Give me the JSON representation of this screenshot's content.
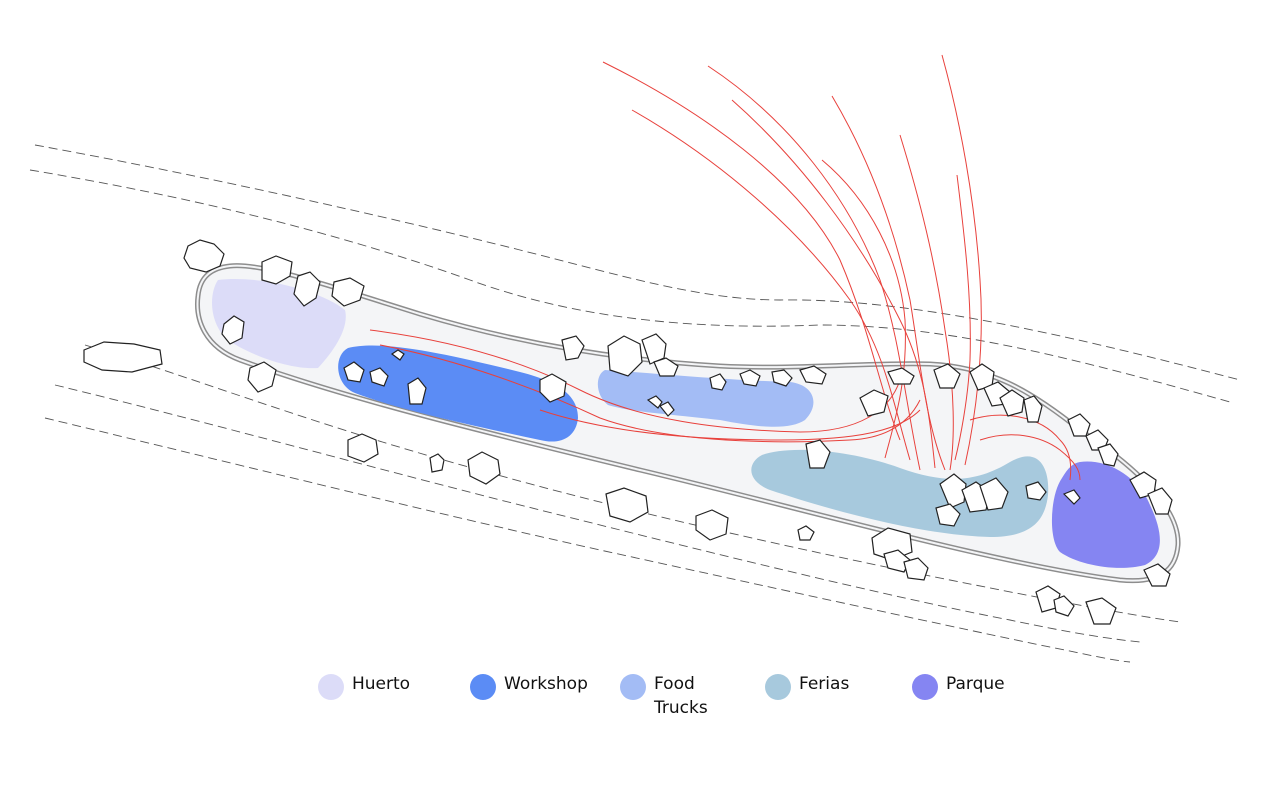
{
  "diagram": {
    "zones": [
      {
        "id": "huerto",
        "label": "Huerto",
        "color": "#dcdcf8"
      },
      {
        "id": "workshop",
        "label": "Workshop",
        "color": "#5b8cf5"
      },
      {
        "id": "food",
        "label": "Food Trucks",
        "color": "#a3bcf5"
      },
      {
        "id": "ferias",
        "label": "Ferias",
        "color": "#a7c9dd"
      },
      {
        "id": "parque",
        "label": "Parque",
        "color": "#8585f2"
      }
    ],
    "colors": {
      "island_fill": "#f4f5f7",
      "island_stroke": "#9a9a9a",
      "flow_lines": "#e8413c",
      "dashed_lines": "#555555",
      "rocks_stroke": "#222222"
    }
  },
  "legend": {
    "huerto": "Huerto",
    "workshop": "Workshop",
    "food_line1": "Food",
    "food_line2": "Trucks",
    "ferias": "Ferias",
    "parque": "Parque"
  }
}
